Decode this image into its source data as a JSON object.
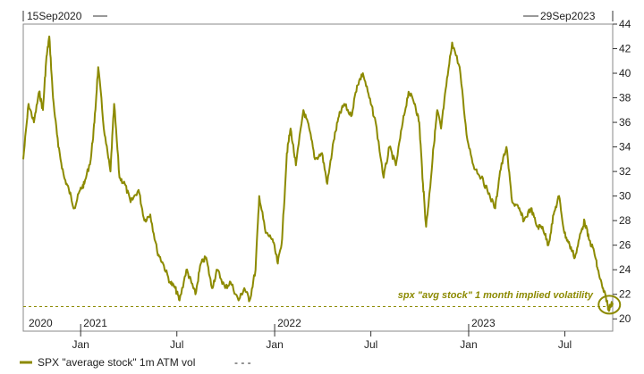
{
  "chart_data": {
    "type": "line",
    "start_label": "15Sep2020",
    "end_label": "29Sep2023",
    "ylim": [
      19,
      44
    ],
    "y_ticks": [
      20,
      22,
      24,
      26,
      28,
      30,
      32,
      34,
      36,
      38,
      40,
      42,
      44
    ],
    "x_month_ticks": [
      "Jan",
      "Jul",
      "Jan",
      "Jul",
      "Jan",
      "Jul"
    ],
    "year_labels": [
      "2020",
      "2021",
      "2022",
      "2023"
    ],
    "annotation": "spx \"avg stock\" 1 month implied volatility",
    "reference_line": 21.0,
    "legend": "SPX \"average stock\" 1m ATM vol",
    "legend_extra": "- - -",
    "series": [
      {
        "name": "SPX \"average stock\" 1m ATM vol",
        "color": "#8c8a00",
        "x": [
          "2020-09-15",
          "2020-09-25",
          "2020-10-05",
          "2020-10-15",
          "2020-10-22",
          "2020-10-28",
          "2020-11-03",
          "2020-11-10",
          "2020-11-20",
          "2020-12-01",
          "2020-12-10",
          "2020-12-20",
          "2020-12-31",
          "2021-01-08",
          "2021-01-20",
          "2021-01-27",
          "2021-02-03",
          "2021-02-15",
          "2021-02-26",
          "2021-03-05",
          "2021-03-15",
          "2021-03-25",
          "2021-04-05",
          "2021-04-20",
          "2021-05-01",
          "2021-05-12",
          "2021-05-25",
          "2021-06-05",
          "2021-06-18",
          "2021-06-28",
          "2021-07-06",
          "2021-07-19",
          "2021-07-28",
          "2021-08-05",
          "2021-08-15",
          "2021-08-25",
          "2021-09-05",
          "2021-09-15",
          "2021-09-30",
          "2021-10-10",
          "2021-10-25",
          "2021-11-05",
          "2021-11-15",
          "2021-11-26",
          "2021-12-03",
          "2021-12-15",
          "2021-12-28",
          "2022-01-07",
          "2022-01-15",
          "2022-01-24",
          "2022-01-31",
          "2022-02-10",
          "2022-02-24",
          "2022-03-07",
          "2022-03-18",
          "2022-03-31",
          "2022-04-10",
          "2022-04-22",
          "2022-05-02",
          "2022-05-12",
          "2022-05-25",
          "2022-06-05",
          "2022-06-16",
          "2022-06-28",
          "2022-07-10",
          "2022-07-25",
          "2022-08-05",
          "2022-08-17",
          "2022-08-30",
          "2022-09-10",
          "2022-09-22",
          "2022-09-30",
          "2022-10-07",
          "2022-10-13",
          "2022-10-20",
          "2022-10-27",
          "2022-11-03",
          "2022-11-10",
          "2022-11-20",
          "2022-12-01",
          "2022-12-15",
          "2022-12-28",
          "2023-01-10",
          "2023-01-25",
          "2023-02-05",
          "2023-02-20",
          "2023-03-01",
          "2023-03-13",
          "2023-03-24",
          "2023-04-05",
          "2023-04-15",
          "2023-04-28",
          "2023-05-10",
          "2023-05-20",
          "2023-05-31",
          "2023-06-10",
          "2023-06-20",
          "2023-06-30",
          "2023-07-10",
          "2023-07-20",
          "2023-07-31",
          "2023-08-07",
          "2023-08-15",
          "2023-08-25",
          "2023-09-01",
          "2023-09-10",
          "2023-09-18",
          "2023-09-21",
          "2023-09-29"
        ],
        "values": [
          33.0,
          37.5,
          36.0,
          38.5,
          37.0,
          41.0,
          43.0,
          38.0,
          34.0,
          31.5,
          30.5,
          29.0,
          30.5,
          31.0,
          33.0,
          36.0,
          40.5,
          35.0,
          32.0,
          37.5,
          31.5,
          31.0,
          29.5,
          30.5,
          28.0,
          28.5,
          25.5,
          24.5,
          23.0,
          22.5,
          21.5,
          24.0,
          23.0,
          22.0,
          24.5,
          25.0,
          22.5,
          24.0,
          22.5,
          23.0,
          21.5,
          22.5,
          21.5,
          24.0,
          30.0,
          27.0,
          26.5,
          24.5,
          26.5,
          33.5,
          35.5,
          32.5,
          37.0,
          35.5,
          33.0,
          33.5,
          31.0,
          34.5,
          36.5,
          37.5,
          36.5,
          39.0,
          40.0,
          38.0,
          36.0,
          31.5,
          34.0,
          32.5,
          36.0,
          38.5,
          37.5,
          36.0,
          31.0,
          27.5,
          30.5,
          34.0,
          37.0,
          35.5,
          39.0,
          42.5,
          40.5,
          35.0,
          32.5,
          31.5,
          30.5,
          29.0,
          32.0,
          34.0,
          29.5,
          29.0,
          28.0,
          29.0,
          27.5,
          27.5,
          26.0,
          28.5,
          30.0,
          27.0,
          26.0,
          25.0,
          27.0,
          28.0,
          26.5,
          25.5,
          24.0,
          22.5,
          21.5,
          20.8,
          21.3
        ]
      }
    ]
  }
}
